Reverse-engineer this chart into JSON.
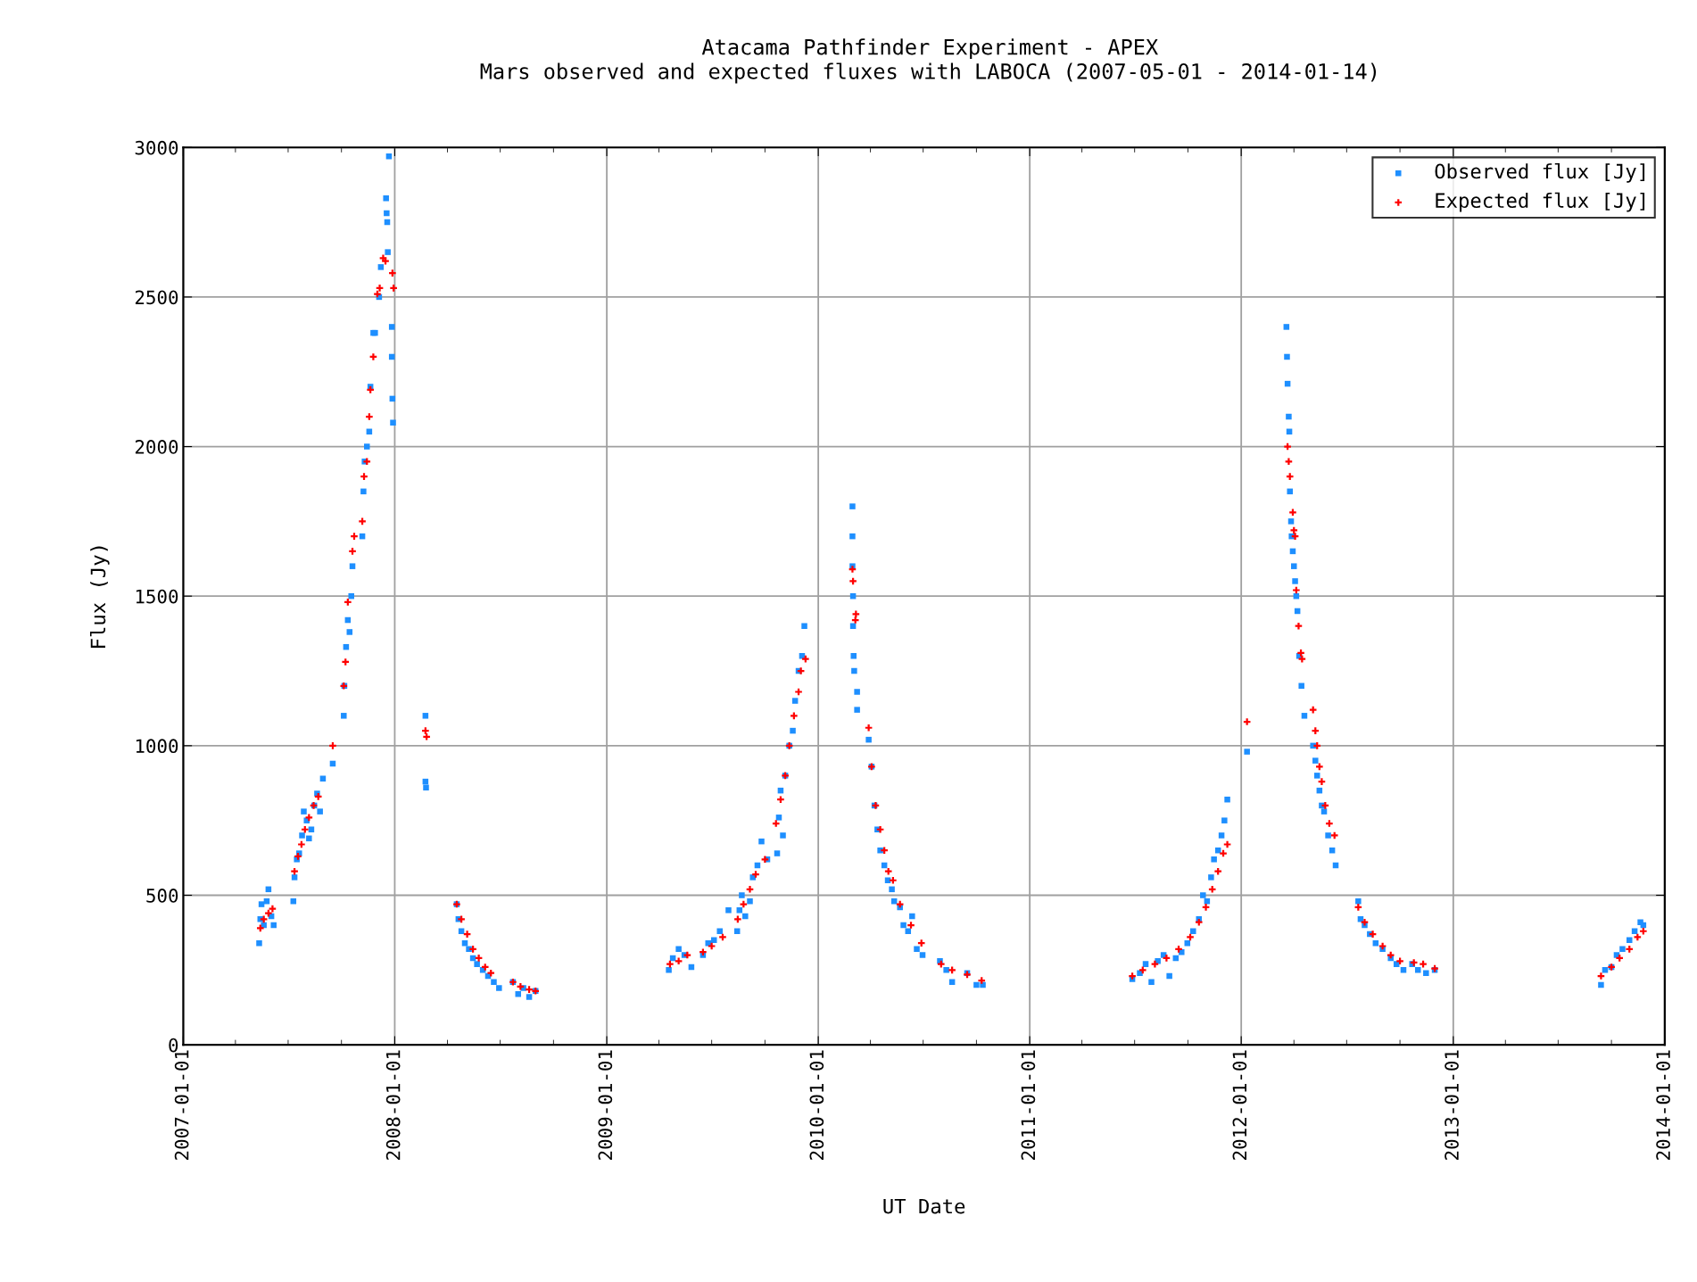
{
  "chart_data": {
    "type": "scatter",
    "title": "Atacama Pathfinder Experiment - APEX",
    "subtitle": "Mars observed and expected fluxes with LABOCA (2007-05-01 - 2014-01-14)",
    "xlabel": "UT Date",
    "ylabel": "Flux (Jy)",
    "xlim": [
      "2007-01-01",
      "2014-01-01"
    ],
    "ylim": [
      0,
      3000
    ],
    "xticks": [
      "2007-01-01",
      "2008-01-01",
      "2009-01-01",
      "2010-01-01",
      "2011-01-01",
      "2012-01-01",
      "2013-01-01",
      "2014-01-01"
    ],
    "yticks": [
      0,
      500,
      1000,
      1500,
      2000,
      2500,
      3000
    ],
    "grid": true,
    "legend": "top right",
    "series": [
      {
        "name": "Observed flux [Jy]",
        "color": "#1e8fff",
        "marker": "square",
        "x": [
          "2007-05-12",
          "2007-05-14",
          "2007-05-16",
          "2007-05-20",
          "2007-05-25",
          "2007-05-28",
          "2007-06-02",
          "2007-06-06",
          "2007-07-10",
          "2007-07-12",
          "2007-07-16",
          "2007-07-20",
          "2007-07-25",
          "2007-07-28",
          "2007-08-02",
          "2007-08-06",
          "2007-08-10",
          "2007-08-15",
          "2007-08-20",
          "2007-08-25",
          "2007-08-30",
          "2007-09-16",
          "2007-10-05",
          "2007-10-06",
          "2007-10-09",
          "2007-10-12",
          "2007-10-15",
          "2007-10-18",
          "2007-10-20",
          "2007-11-06",
          "2007-11-08",
          "2007-11-10",
          "2007-11-14",
          "2007-11-18",
          "2007-11-20",
          "2007-11-25",
          "2007-11-28",
          "2007-12-05",
          "2007-12-08",
          "2007-12-17",
          "2007-12-18",
          "2007-12-19",
          "2007-12-20",
          "2007-12-22",
          "2007-12-27",
          "2007-12-27",
          "2007-12-28",
          "2007-12-29",
          "2008-02-23",
          "2008-02-23",
          "2008-02-24",
          "2008-04-17",
          "2008-04-20",
          "2008-04-25",
          "2008-05-01",
          "2008-05-08",
          "2008-05-15",
          "2008-05-22",
          "2008-06-01",
          "2008-06-10",
          "2008-06-20",
          "2008-06-29",
          "2008-07-23",
          "2008-08-01",
          "2008-08-10",
          "2008-08-20",
          "2008-08-31",
          "2009-04-18",
          "2009-04-25",
          "2009-05-05",
          "2009-05-15",
          "2009-05-27",
          "2009-06-16",
          "2009-06-25",
          "2009-07-05",
          "2009-07-15",
          "2009-07-30",
          "2009-08-14",
          "2009-08-18",
          "2009-08-22",
          "2009-08-28",
          "2009-09-05",
          "2009-09-10",
          "2009-09-18",
          "2009-09-25",
          "2009-10-05",
          "2009-10-22",
          "2009-10-25",
          "2009-10-28",
          "2009-11-01",
          "2009-11-05",
          "2009-11-12",
          "2009-11-18",
          "2009-11-22",
          "2009-11-28",
          "2009-12-04",
          "2009-12-08",
          "2010-03-01",
          "2010-03-01",
          "2010-03-01",
          "2010-03-02",
          "2010-03-02",
          "2010-03-03",
          "2010-03-04",
          "2010-03-09",
          "2010-03-09",
          "2010-03-29",
          "2010-04-03",
          "2010-04-08",
          "2010-04-13",
          "2010-04-18",
          "2010-04-25",
          "2010-05-01",
          "2010-05-08",
          "2010-05-12",
          "2010-05-22",
          "2010-05-28",
          "2010-06-05",
          "2010-06-12",
          "2010-06-20",
          "2010-06-30",
          "2010-07-30",
          "2010-08-10",
          "2010-08-20",
          "2010-09-15",
          "2010-10-01",
          "2010-10-12",
          "2011-06-27",
          "2011-07-10",
          "2011-07-20",
          "2011-07-30",
          "2011-08-10",
          "2011-08-20",
          "2011-08-30",
          "2011-09-10",
          "2011-09-20",
          "2011-09-30",
          "2011-10-10",
          "2011-10-20",
          "2011-10-27",
          "2011-11-03",
          "2011-11-10",
          "2011-11-15",
          "2011-11-22",
          "2011-11-28",
          "2011-12-03",
          "2011-12-08",
          "2012-01-11",
          "2012-03-19",
          "2012-03-20",
          "2012-03-21",
          "2012-03-23",
          "2012-03-24",
          "2012-03-25",
          "2012-03-27",
          "2012-03-28",
          "2012-03-30",
          "2012-04-01",
          "2012-04-03",
          "2012-04-05",
          "2012-04-07",
          "2012-04-10",
          "2012-04-14",
          "2012-04-19",
          "2012-05-04",
          "2012-05-08",
          "2012-05-11",
          "2012-05-15",
          "2012-05-19",
          "2012-05-23",
          "2012-05-30",
          "2012-06-06",
          "2012-06-12",
          "2012-07-21",
          "2012-07-25",
          "2012-08-01",
          "2012-08-10",
          "2012-08-20",
          "2012-09-01",
          "2012-09-15",
          "2012-09-25",
          "2012-10-07",
          "2012-10-22",
          "2012-11-01",
          "2012-11-15",
          "2012-11-30",
          "2013-09-13",
          "2013-09-20",
          "2013-10-01",
          "2013-10-10",
          "2013-10-20",
          "2013-11-01",
          "2013-11-10",
          "2013-11-20",
          "2013-11-25"
        ],
        "values": [
          340,
          420,
          470,
          400,
          480,
          520,
          430,
          400,
          480,
          560,
          620,
          640,
          700,
          780,
          750,
          690,
          720,
          800,
          840,
          780,
          890,
          940,
          1100,
          1200,
          1330,
          1420,
          1380,
          1500,
          1600,
          1700,
          1850,
          1950,
          2000,
          2050,
          2200,
          2380,
          2380,
          2500,
          2600,
          2830,
          2780,
          2750,
          2650,
          2970,
          2400,
          2300,
          2160,
          2080,
          1100,
          880,
          860,
          470,
          420,
          380,
          340,
          320,
          290,
          270,
          250,
          230,
          210,
          190,
          210,
          170,
          190,
          160,
          180,
          250,
          290,
          320,
          300,
          260,
          300,
          340,
          350,
          380,
          450,
          380,
          450,
          500,
          430,
          480,
          560,
          600,
          680,
          620,
          640,
          760,
          850,
          700,
          900,
          1000,
          1050,
          1150,
          1250,
          1300,
          1400,
          1800,
          1700,
          1600,
          1500,
          1400,
          1300,
          1250,
          1180,
          1120,
          1020,
          930,
          800,
          720,
          650,
          600,
          550,
          520,
          480,
          460,
          400,
          380,
          430,
          320,
          300,
          280,
          250,
          210,
          240,
          200,
          200,
          220,
          240,
          270,
          210,
          280,
          300,
          230,
          290,
          310,
          340,
          380,
          420,
          500,
          480,
          560,
          620,
          650,
          700,
          750,
          820,
          980,
          2400,
          2300,
          2210,
          2100,
          2050,
          1850,
          1750,
          1700,
          1650,
          1600,
          1550,
          1500,
          1450,
          1300,
          1200,
          1100,
          1000,
          950,
          900,
          850,
          800,
          780,
          700,
          650,
          600,
          480,
          420,
          400,
          370,
          340,
          320,
          290,
          270,
          250,
          270,
          250,
          240,
          250,
          200,
          250,
          260,
          300,
          320,
          350,
          380,
          410,
          400
        ]
      },
      {
        "name": "Expected flux [Jy]",
        "color": "#ff0000",
        "marker": "cross",
        "x": [
          "2007-05-14",
          "2007-05-20",
          "2007-05-28",
          "2007-06-04",
          "2007-07-12",
          "2007-07-18",
          "2007-07-24",
          "2007-07-30",
          "2007-08-06",
          "2007-08-14",
          "2007-08-22",
          "2007-09-16",
          "2007-10-05",
          "2007-10-08",
          "2007-10-12",
          "2007-10-20",
          "2007-10-23",
          "2007-11-06",
          "2007-11-09",
          "2007-11-14",
          "2007-11-18",
          "2007-11-20",
          "2007-11-25",
          "2007-12-02",
          "2007-12-06",
          "2007-12-12",
          "2007-12-16",
          "2007-12-28",
          "2007-12-30",
          "2008-02-23",
          "2008-02-25",
          "2008-04-17",
          "2008-04-25",
          "2008-05-05",
          "2008-05-15",
          "2008-05-25",
          "2008-06-05",
          "2008-06-15",
          "2008-07-23",
          "2008-08-05",
          "2008-08-20",
          "2008-08-31",
          "2009-04-20",
          "2009-05-05",
          "2009-05-20",
          "2009-06-16",
          "2009-07-01",
          "2009-07-20",
          "2009-08-15",
          "2009-08-25",
          "2009-09-05",
          "2009-09-15",
          "2009-10-01",
          "2009-10-20",
          "2009-10-28",
          "2009-11-05",
          "2009-11-12",
          "2009-11-20",
          "2009-11-28",
          "2009-12-02",
          "2009-12-10",
          "2010-03-01",
          "2010-03-02",
          "2010-03-06",
          "2010-03-07",
          "2010-03-29",
          "2010-04-03",
          "2010-04-10",
          "2010-04-18",
          "2010-04-25",
          "2010-05-02",
          "2010-05-10",
          "2010-05-22",
          "2010-06-10",
          "2010-06-28",
          "2010-08-01",
          "2010-08-20",
          "2010-09-15",
          "2010-10-10",
          "2011-06-27",
          "2011-07-15",
          "2011-08-05",
          "2011-08-25",
          "2011-09-15",
          "2011-10-05",
          "2011-10-20",
          "2011-11-01",
          "2011-11-12",
          "2011-11-22",
          "2011-12-01",
          "2011-12-08",
          "2012-01-11",
          "2012-03-21",
          "2012-03-23",
          "2012-03-25",
          "2012-03-30",
          "2012-04-01",
          "2012-04-03",
          "2012-04-05",
          "2012-04-09",
          "2012-04-13",
          "2012-04-15",
          "2012-05-04",
          "2012-05-08",
          "2012-05-11",
          "2012-05-15",
          "2012-05-19",
          "2012-05-25",
          "2012-06-01",
          "2012-06-10",
          "2012-07-21",
          "2012-08-01",
          "2012-08-15",
          "2012-09-01",
          "2012-09-15",
          "2012-10-01",
          "2012-10-25",
          "2012-11-10",
          "2012-11-30",
          "2013-09-13",
          "2013-10-01",
          "2013-10-15",
          "2013-11-01",
          "2013-11-15",
          "2013-11-25"
        ],
        "values": [
          390,
          420,
          440,
          455,
          580,
          630,
          670,
          720,
          760,
          800,
          830,
          1000,
          1200,
          1280,
          1480,
          1650,
          1700,
          1750,
          1900,
          1950,
          2100,
          2190,
          2300,
          2510,
          2530,
          2630,
          2620,
          2580,
          2530,
          1050,
          1030,
          470,
          420,
          370,
          320,
          290,
          260,
          240,
          210,
          195,
          185,
          180,
          270,
          280,
          300,
          310,
          330,
          360,
          420,
          470,
          520,
          570,
          620,
          740,
          820,
          900,
          1000,
          1100,
          1180,
          1250,
          1290,
          1590,
          1550,
          1420,
          1440,
          1060,
          930,
          800,
          720,
          650,
          580,
          550,
          470,
          400,
          340,
          270,
          250,
          235,
          215,
          230,
          250,
          270,
          290,
          320,
          360,
          410,
          460,
          520,
          580,
          640,
          670,
          1080,
          2000,
          1950,
          1900,
          1780,
          1720,
          1700,
          1520,
          1400,
          1310,
          1290,
          1120,
          1050,
          1000,
          930,
          880,
          800,
          740,
          700,
          460,
          410,
          370,
          330,
          300,
          280,
          275,
          270,
          255,
          230,
          260,
          290,
          320,
          360,
          380
        ]
      }
    ]
  }
}
